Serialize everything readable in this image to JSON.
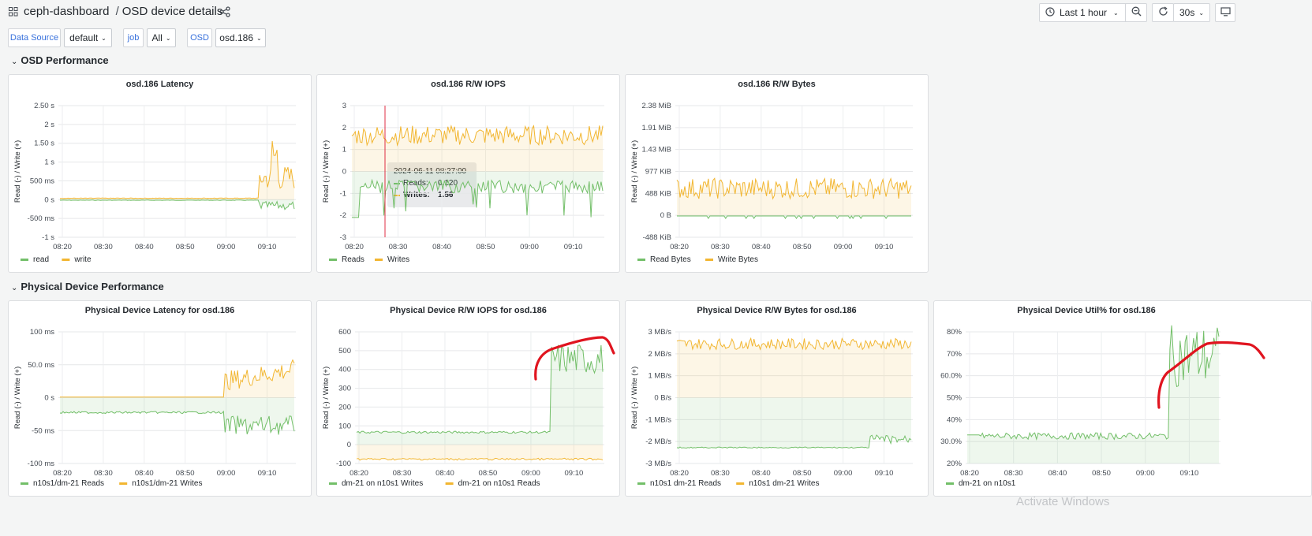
{
  "header": {
    "apps_icon": "grid-icon",
    "folder": "ceph-dashboard",
    "separator": "/",
    "title": "OSD device details",
    "share_icon": "share-icon",
    "time_range": "Last 1 hour",
    "refresh_interval": "30s"
  },
  "variables": [
    {
      "label": "Data Source",
      "value": "default"
    },
    {
      "label": "job",
      "value": "All"
    },
    {
      "label": "OSD",
      "value": "osd.186"
    }
  ],
  "rows": [
    {
      "title": "OSD Performance"
    },
    {
      "title": "Physical Device Performance"
    }
  ],
  "colors": {
    "read": "#73bf69",
    "write": "#f2b631",
    "cursor": "#e02f44",
    "annotation": "#e0141f"
  },
  "panels": [
    {
      "title": "osd.186 Latency",
      "ylabel": "Read (-) / Write (+)",
      "yticks": [
        "2.50 s",
        "2 s",
        "1.50 s",
        "1 s",
        "500 ms",
        "0 s",
        "-500 ms",
        "-1 s"
      ],
      "xticks": [
        "08:20",
        "08:30",
        "08:40",
        "08:50",
        "09:00",
        "09:10"
      ],
      "legend": [
        {
          "name": "read",
          "color": "#73bf69"
        },
        {
          "name": "write",
          "color": "#f2b631"
        }
      ]
    },
    {
      "title": "osd.186 R/W IOPS",
      "ylabel": "Read (-) / Write (+)",
      "yticks": [
        "3",
        "2",
        "1",
        "0",
        "-1",
        "-2",
        "-3"
      ],
      "xticks": [
        "08:20",
        "08:30",
        "08:40",
        "08:50",
        "09:00",
        "09:10"
      ],
      "legend": [
        {
          "name": "Reads",
          "color": "#73bf69"
        },
        {
          "name": "Writes",
          "color": "#f2b631"
        }
      ],
      "tooltip": {
        "time": "2024-06-11 08:27:00",
        "rows": [
          {
            "name": "Reads:",
            "value": "0.120"
          },
          {
            "name": "Writes:",
            "value": "1.56"
          }
        ]
      }
    },
    {
      "title": "osd.186 R/W Bytes",
      "ylabel": "Read (-) / Write (+)",
      "yticks": [
        "2.38 MiB",
        "1.91 MiB",
        "1.43 MiB",
        "977 KiB",
        "488 KiB",
        "0 B",
        "-488 KiB"
      ],
      "xticks": [
        "08:20",
        "08:30",
        "08:40",
        "08:50",
        "09:00",
        "09:10"
      ],
      "legend": [
        {
          "name": "Read Bytes",
          "color": "#73bf69"
        },
        {
          "name": "Write Bytes",
          "color": "#f2b631"
        }
      ]
    },
    {
      "title": "Physical Device Latency for osd.186",
      "ylabel": "Read (-) / Write (+)",
      "yticks": [
        "100 ms",
        "50.0 ms",
        "0 s",
        "-50 ms",
        "-100 ms"
      ],
      "xticks": [
        "08:20",
        "08:30",
        "08:40",
        "08:50",
        "09:00",
        "09:10"
      ],
      "legend": [
        {
          "name": "n10s1/dm-21 Reads",
          "color": "#73bf69"
        },
        {
          "name": "n10s1/dm-21 Writes",
          "color": "#f2b631"
        }
      ]
    },
    {
      "title": "Physical Device R/W IOPS for osd.186",
      "ylabel": "Read (-) / Write (+)",
      "yticks": [
        "600",
        "500",
        "400",
        "300",
        "200",
        "100",
        "0",
        "-100"
      ],
      "xticks": [
        "08:20",
        "08:30",
        "08:40",
        "08:50",
        "09:00",
        "09:10"
      ],
      "legend": [
        {
          "name": "dm-21 on n10s1 Writes",
          "color": "#73bf69"
        },
        {
          "name": "dm-21 on n10s1 Reads",
          "color": "#f2b631"
        }
      ]
    },
    {
      "title": "Physical Device R/W Bytes for osd.186",
      "ylabel": "Read (-) / Write (+)",
      "yticks": [
        "3 MB/s",
        "2 MB/s",
        "1 MB/s",
        "0 B/s",
        "-1 MB/s",
        "-2 MB/s",
        "-3 MB/s"
      ],
      "xticks": [
        "08:20",
        "08:30",
        "08:40",
        "08:50",
        "09:00",
        "09:10"
      ],
      "legend": [
        {
          "name": "n10s1 dm-21 Reads",
          "color": "#73bf69"
        },
        {
          "name": "n10s1 dm-21 Writes",
          "color": "#f2b631"
        }
      ]
    },
    {
      "title": "Physical Device Util% for osd.186",
      "ylabel": "",
      "yticks": [
        "80%",
        "70%",
        "60.0%",
        "50%",
        "40%",
        "30.0%",
        "20%"
      ],
      "xticks": [
        "08:20",
        "08:30",
        "08:40",
        "08:50",
        "09:00",
        "09:10"
      ],
      "legend": [
        {
          "name": "dm-21 on n10s1",
          "color": "#73bf69"
        }
      ]
    }
  ],
  "watermark": "Activate Windows"
}
